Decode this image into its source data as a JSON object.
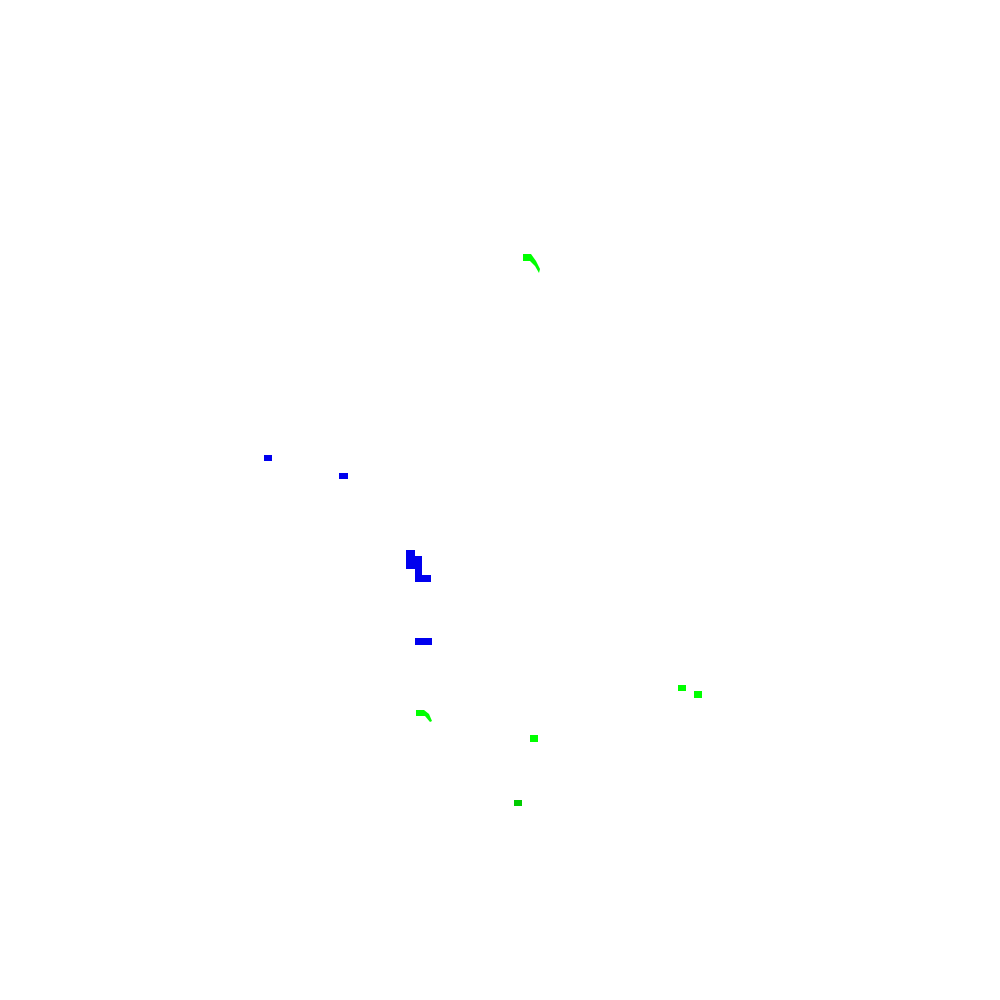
{
  "colors": {
    "background": "#ffffff",
    "blue": "#0000ee",
    "green": "#00ff00",
    "dark_green": "#00cc00"
  },
  "marks": [
    {
      "name": "green-arc-top",
      "color": "green"
    },
    {
      "name": "blue-mark-small-1",
      "color": "blue"
    },
    {
      "name": "blue-mark-small-2",
      "color": "blue"
    },
    {
      "name": "blue-step-shape",
      "color": "blue"
    },
    {
      "name": "blue-bar",
      "color": "blue"
    },
    {
      "name": "green-mark-right-1",
      "color": "green"
    },
    {
      "name": "green-mark-right-2",
      "color": "green"
    },
    {
      "name": "green-arc-bottom",
      "color": "green"
    },
    {
      "name": "green-mark-center",
      "color": "green"
    },
    {
      "name": "green-mark-lower",
      "color": "dark_green"
    }
  ]
}
